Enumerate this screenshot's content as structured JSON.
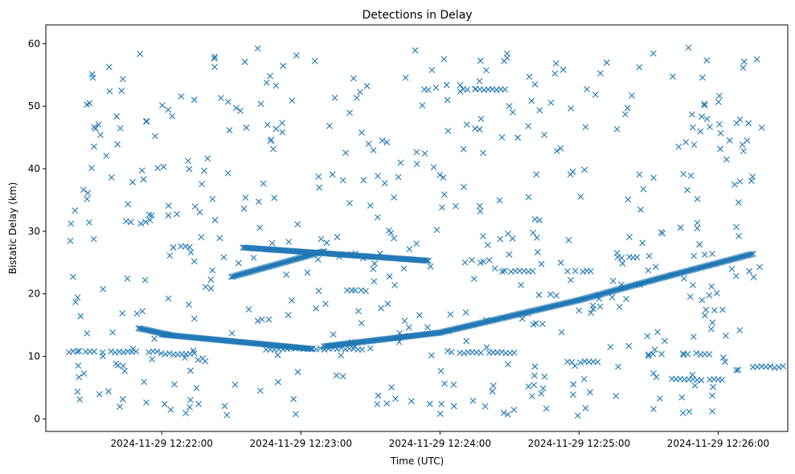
{
  "chart_data": {
    "type": "scatter",
    "title": "Detections in Delay",
    "xlabel": "Time (UTC)",
    "ylabel": "Bistatic Delay (km)",
    "marker": "x",
    "marker_color": "#1f77b4",
    "x_start": "2024-11-29 12:21:20",
    "x_end": "2024-11-29 12:26:20",
    "xlim": [
      "2024-11-29 12:21:10",
      "2024-11-29 12:26:30"
    ],
    "ylim": [
      -2,
      63
    ],
    "x_ticks": [
      "2024-11-29 12:22:00",
      "2024-11-29 12:23:00",
      "2024-11-29 12:24:00",
      "2024-11-29 12:25:00",
      "2024-11-29 12:26:00"
    ],
    "y_ticks": [
      0,
      10,
      20,
      30,
      40,
      50,
      60
    ],
    "grid": false,
    "legend": "none",
    "tracks": [
      {
        "from": "2024-11-29 12:21:50",
        "to": "2024-11-29 12:22:05",
        "y_from": 14.5,
        "y_to": 13.3
      },
      {
        "from": "2024-11-29 12:22:00",
        "to": "2024-11-29 12:23:05",
        "y_from": 13.5,
        "y_to": 11.2
      },
      {
        "from": "2024-11-29 12:23:10",
        "to": "2024-11-29 12:24:00",
        "y_from": 11.6,
        "y_to": 13.8
      },
      {
        "from": "2024-11-29 12:24:00",
        "to": "2024-11-29 12:25:00",
        "y_from": 13.8,
        "y_to": 19.0
      },
      {
        "from": "2024-11-29 12:25:00",
        "to": "2024-11-29 12:25:40",
        "y_from": 19.0,
        "y_to": 23.0
      },
      {
        "from": "2024-11-29 12:25:40",
        "to": "2024-11-29 12:26:15",
        "y_from": 23.0,
        "y_to": 26.4
      },
      {
        "from": "2024-11-29 12:22:30",
        "to": "2024-11-29 12:23:10",
        "y_from": 22.7,
        "y_to": 26.8
      },
      {
        "from": "2024-11-29 12:22:35",
        "to": "2024-11-29 12:23:55",
        "y_from": 27.4,
        "y_to": 25.3
      }
    ],
    "constant_series": [
      {
        "y": 10.7,
        "from": "2024-11-29 12:21:20",
        "to": "2024-11-29 12:21:58"
      },
      {
        "y": 10.4,
        "from": "2024-11-29 12:21:58",
        "to": "2024-11-29 12:22:14"
      },
      {
        "y": 11.2,
        "from": "2024-11-29 12:22:45",
        "to": "2024-11-29 12:23:30"
      },
      {
        "y": 10.6,
        "from": "2024-11-29 12:24:05",
        "to": "2024-11-29 12:24:32"
      },
      {
        "y": 9.1,
        "from": "2024-11-29 12:24:55",
        "to": "2024-11-29 12:25:08"
      },
      {
        "y": 10.4,
        "from": "2024-11-29 12:25:30",
        "to": "2024-11-29 12:25:58"
      },
      {
        "y": 6.3,
        "from": "2024-11-29 12:25:40",
        "to": "2024-11-29 12:26:00"
      },
      {
        "y": 8.3,
        "from": "2024-11-29 12:26:15",
        "to": "2024-11-29 12:26:28"
      },
      {
        "y": 23.6,
        "from": "2024-11-29 12:24:25",
        "to": "2024-11-29 12:24:40"
      },
      {
        "y": 23.6,
        "from": "2024-11-29 12:24:55",
        "to": "2024-11-29 12:25:05"
      },
      {
        "y": 27.5,
        "from": "2024-11-29 12:22:05",
        "to": "2024-11-29 12:22:12"
      },
      {
        "y": 20.5,
        "from": "2024-11-29 12:23:20",
        "to": "2024-11-29 12:23:28"
      },
      {
        "y": 52.7,
        "from": "2024-11-29 12:23:48",
        "to": "2024-11-29 12:23:55"
      },
      {
        "y": 52.7,
        "from": "2024-11-29 12:24:10",
        "to": "2024-11-29 12:24:28"
      },
      {
        "y": 25.8,
        "from": "2024-11-29 12:25:15",
        "to": "2024-11-29 12:25:25"
      }
    ],
    "noise_points": 520,
    "noise_y_range": [
      0.5,
      59.5
    ]
  }
}
